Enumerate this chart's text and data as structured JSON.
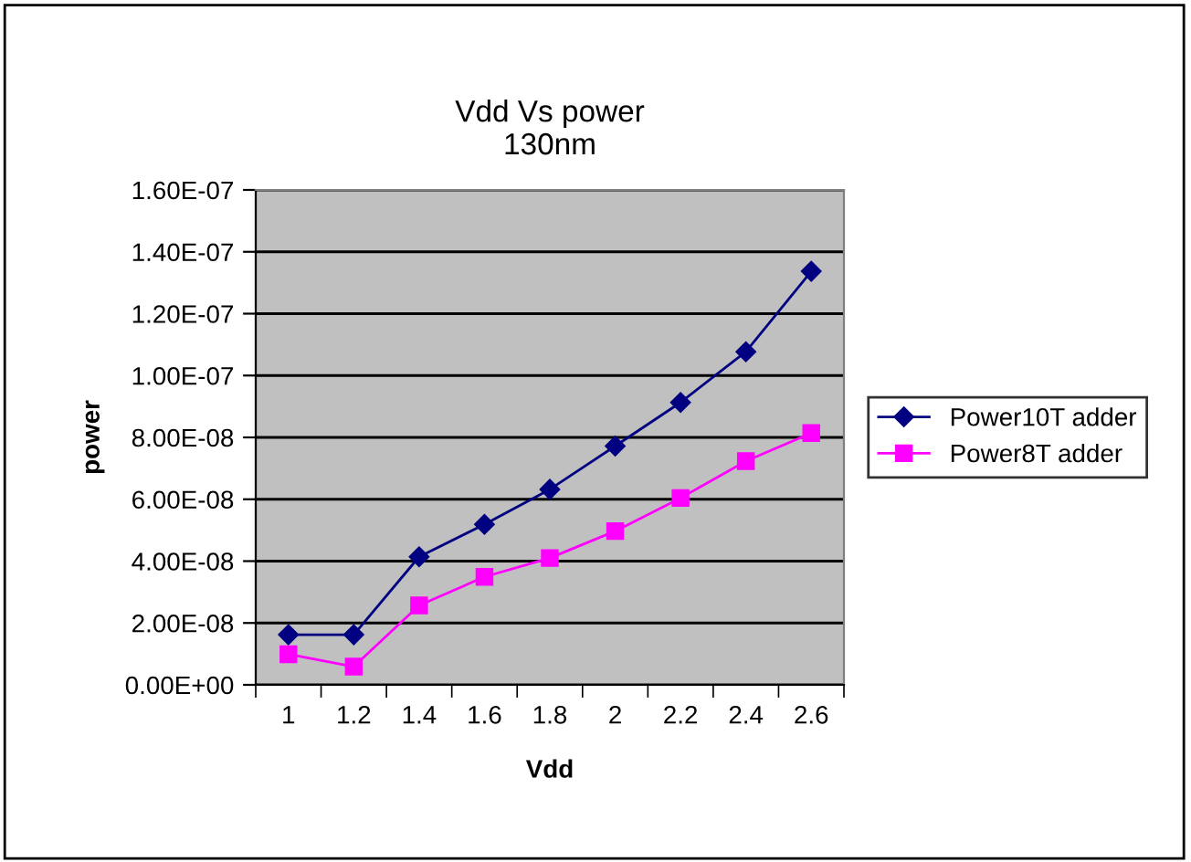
{
  "chart_data": {
    "type": "line",
    "title": "Vdd Vs power\n130nm",
    "xlabel": "Vdd",
    "ylabel": "power",
    "categories": [
      "1",
      "1.2",
      "1.4",
      "1.6",
      "1.8",
      "2",
      "2.2",
      "2.4",
      "2.6"
    ],
    "series": [
      {
        "name": "Power10T adder",
        "color": "#000080",
        "marker": "diamond",
        "values": [
          1.62e-08,
          1.62e-08,
          4.14e-08,
          5.19e-08,
          6.32e-08,
          7.72e-08,
          9.13e-08,
          1.077e-07,
          1.337e-07
        ]
      },
      {
        "name": "Power8T adder",
        "color": "#ff00ff",
        "marker": "square",
        "values": [
          9.9e-09,
          5.9e-09,
          2.57e-08,
          3.49e-08,
          4.1e-08,
          4.97e-08,
          6.04e-08,
          7.23e-08,
          8.14e-08
        ]
      }
    ],
    "ylim": [
      0,
      1.6e-07
    ],
    "yticks": [
      {
        "value": 0,
        "label": "0.00E+00"
      },
      {
        "value": 2e-08,
        "label": "2.00E-08"
      },
      {
        "value": 4e-08,
        "label": "4.00E-08"
      },
      {
        "value": 6e-08,
        "label": "6.00E-08"
      },
      {
        "value": 8e-08,
        "label": "8.00E-08"
      },
      {
        "value": 1e-07,
        "label": "1.00E-07"
      },
      {
        "value": 1.2e-07,
        "label": "1.20E-07"
      },
      {
        "value": 1.4e-07,
        "label": "1.40E-07"
      },
      {
        "value": 1.6e-07,
        "label": "1.60E-07"
      }
    ],
    "grid": "y",
    "legend": "right",
    "line_style": "solid"
  }
}
